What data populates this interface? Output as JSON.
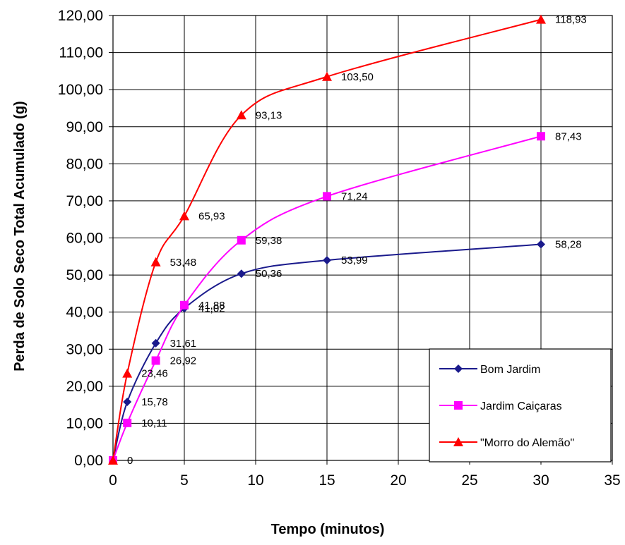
{
  "chart_data": {
    "type": "line",
    "xlabel": "Tempo (minutos)",
    "ylabel": "Perda de Solo Seco Total Acumulado  (g)",
    "xlim": [
      0,
      35
    ],
    "ylim": [
      0,
      120
    ],
    "x_ticks": [
      0,
      5,
      10,
      15,
      20,
      25,
      30,
      35
    ],
    "x_tick_labels": [
      "0",
      "5",
      "10",
      "15",
      "20",
      "25",
      "30",
      "35"
    ],
    "y_ticks": [
      0,
      10,
      20,
      30,
      40,
      50,
      60,
      70,
      80,
      90,
      100,
      110,
      120
    ],
    "y_tick_labels": [
      "0,00",
      "10,00",
      "20,00",
      "30,00",
      "40,00",
      "50,00",
      "60,00",
      "70,00",
      "80,00",
      "90,00",
      "100,00",
      "110,00",
      "120,00"
    ],
    "grid": true,
    "legend_position": "bottom-right",
    "x": [
      0,
      1,
      3,
      5,
      9,
      15,
      30
    ],
    "series": [
      {
        "name": "Bom Jardim",
        "color": "#1a1a8c",
        "marker": "diamond",
        "values": [
          0,
          15.78,
          31.61,
          41.02,
          50.36,
          53.99,
          58.28
        ],
        "labels": [
          "",
          "15,78",
          "31,61",
          "41,02",
          "50,36",
          "53,99",
          "58,28"
        ]
      },
      {
        "name": "Jardim Caiçaras",
        "color": "#ff00ff",
        "marker": "square",
        "values": [
          0,
          10.11,
          26.92,
          41.88,
          59.38,
          71.24,
          87.43
        ],
        "labels": [
          "",
          "10,11",
          "26,92",
          "41,88",
          "59,38",
          "71,24",
          "87,43"
        ]
      },
      {
        "name": "\"Morro do Alemão\"",
        "color": "#ff0000",
        "marker": "triangle",
        "values": [
          0,
          23.46,
          53.48,
          65.93,
          93.13,
          103.5,
          118.93
        ],
        "labels": [
          "0",
          "23,46",
          "53,48",
          "65,93",
          "93,13",
          "103,50",
          "118,93"
        ]
      }
    ]
  }
}
